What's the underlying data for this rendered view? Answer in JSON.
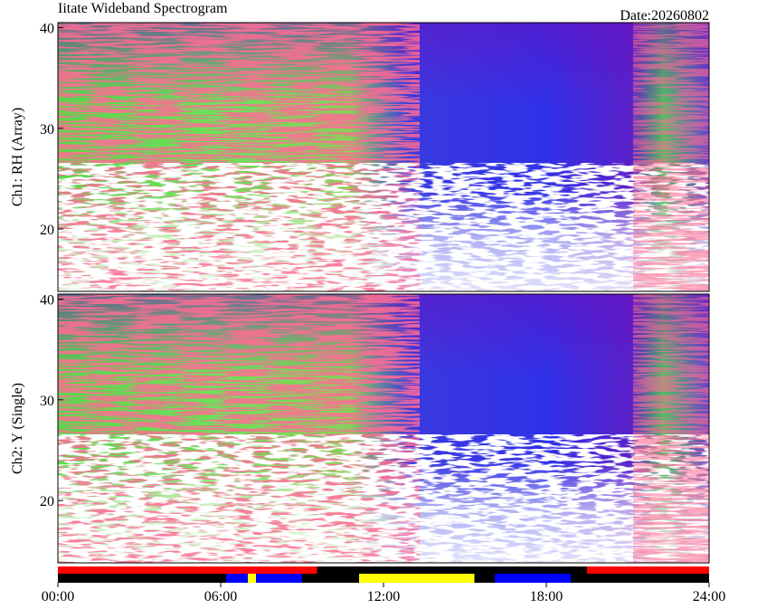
{
  "chart_data": {
    "type": "spectrogram",
    "title": "Iitate Wideband Spectrogram",
    "date": "Date:20260802",
    "xlim": [
      0,
      24
    ],
    "xticks": [
      {
        "value": 0,
        "label": "00:00"
      },
      {
        "value": 6,
        "label": "06:00"
      },
      {
        "value": 12,
        "label": "12:00"
      },
      {
        "value": 18,
        "label": "18:00"
      },
      {
        "value": 24,
        "label": "24:00"
      }
    ],
    "panels": [
      {
        "ylabel": "Ch1: RH (Array)",
        "ylim": [
          13.8,
          40.5
        ],
        "yticks": [
          20,
          30,
          40
        ]
      },
      {
        "ylabel": "Ch2: Y (Single)",
        "ylim": [
          13.8,
          40.5
        ],
        "yticks": [
          20,
          30,
          40
        ]
      }
    ],
    "status_bars": [
      {
        "segments": [
          {
            "start": 0,
            "end": 9.55,
            "color": "#ff0000"
          },
          {
            "start": 19.5,
            "end": 24,
            "color": "#ff0000"
          }
        ]
      },
      {
        "segments": [
          {
            "start": 6.2,
            "end": 9.0,
            "color": "#0000ff"
          },
          {
            "start": 7.0,
            "end": 7.3,
            "color": "#ffff00"
          },
          {
            "start": 11.1,
            "end": 15.35,
            "color": "#ffff00"
          },
          {
            "start": 16.1,
            "end": 18.9,
            "color": "#0000ff"
          }
        ]
      }
    ]
  }
}
